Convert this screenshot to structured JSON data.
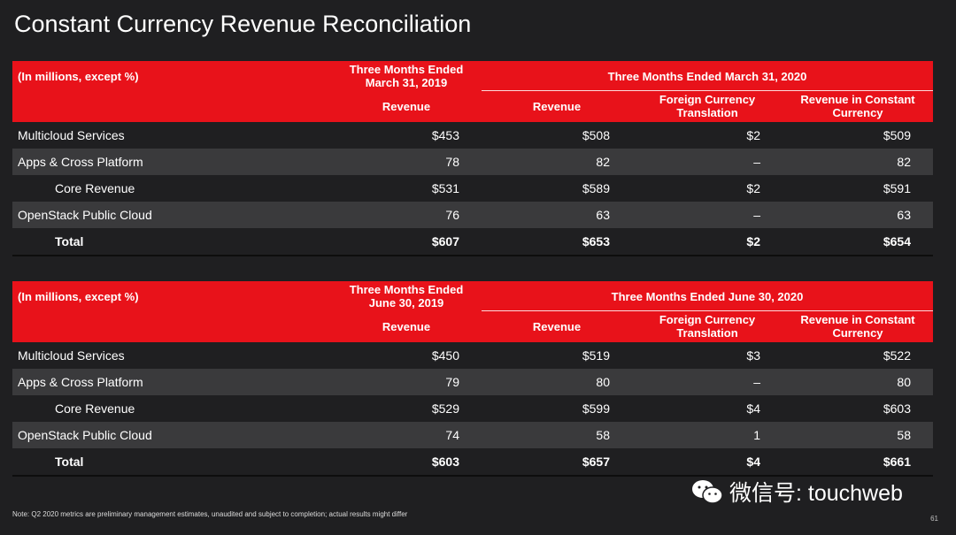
{
  "title": "Constant Currency Revenue Reconciliation",
  "tables": [
    {
      "units": "(In millions, except %)",
      "prior_period_line1": "Three Months Ended",
      "prior_period_line2": "March 31, 2019",
      "prior_col": "Revenue",
      "current_period": "Three Months Ended March 31, 2020",
      "col_revenue": "Revenue",
      "col_fx_line1": "Foreign Currency",
      "col_fx_line2": "Translation",
      "col_cc_line1": "Revenue in Constant",
      "col_cc_line2": "Currency",
      "rows": [
        {
          "label": "Multicloud Services",
          "v1": "$453",
          "v2": "$508",
          "v3": "$2",
          "v4": "$509"
        },
        {
          "label": "Apps & Cross Platform",
          "v1": "78",
          "v2": "82",
          "v3": "–",
          "v4": "82"
        },
        {
          "label": "Core Revenue",
          "v1": "$531",
          "v2": "$589",
          "v3": "$2",
          "v4": "$591"
        },
        {
          "label": "OpenStack Public Cloud",
          "v1": "76",
          "v2": "63",
          "v3": "–",
          "v4": "63"
        },
        {
          "label": "Total",
          "v1": "$607",
          "v2": "$653",
          "v3": "$2",
          "v4": "$654"
        }
      ]
    },
    {
      "units": "(In millions, except %)",
      "prior_period_line1": "Three Months Ended",
      "prior_period_line2": "June 30, 2019",
      "prior_col": "Revenue",
      "current_period": "Three Months Ended June 30, 2020",
      "col_revenue": "Revenue",
      "col_fx_line1": "Foreign Currency",
      "col_fx_line2": "Translation",
      "col_cc_line1": "Revenue in Constant",
      "col_cc_line2": "Currency",
      "rows": [
        {
          "label": "Multicloud Services",
          "v1": "$450",
          "v2": "$519",
          "v3": "$3",
          "v4": "$522"
        },
        {
          "label": "Apps & Cross Platform",
          "v1": "79",
          "v2": "80",
          "v3": "–",
          "v4": "80"
        },
        {
          "label": "Core Revenue",
          "v1": "$529",
          "v2": "$599",
          "v3": "$4",
          "v4": "$603"
        },
        {
          "label": "OpenStack Public Cloud",
          "v1": "74",
          "v2": "58",
          "v3": "1",
          "v4": "58"
        },
        {
          "label": "Total",
          "v1": "$603",
          "v2": "$657",
          "v3": "$4",
          "v4": "$661"
        }
      ]
    }
  ],
  "footnote": "Note: Q2 2020 metrics are preliminary management estimates, unaudited and subject to completion; actual results might differ",
  "page_number": "61",
  "watermark": "微信号: touchweb",
  "colors": {
    "header_red": "#e8121a",
    "background": "#1f1f21",
    "row_alt": "#3a3a3c"
  }
}
